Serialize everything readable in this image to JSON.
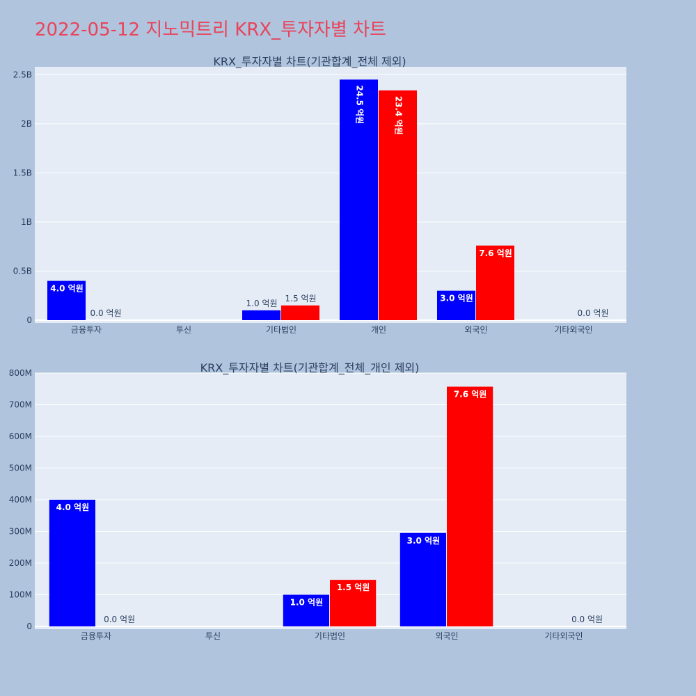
{
  "page_title": "2022-05-12 지노믹트리 KRX_투자자별 차트",
  "colors": {
    "series_a": "#0000ff",
    "series_b": "#ff0000",
    "plot_bg": "#e5ecf6",
    "page_bg": "#b0c4de",
    "title": "#e8445a"
  },
  "chart_data": [
    {
      "type": "bar",
      "title": "KRX_투자자별 차트(기관합계_전체 제외)",
      "categories": [
        "금융투자",
        "투신",
        "기타법인",
        "개인",
        "외국인",
        "기타외국인"
      ],
      "series": [
        {
          "color": "#0000ff",
          "values": [
            400000000,
            null,
            100000000,
            2450000000,
            300000000,
            null
          ],
          "labels": [
            "4.0 억원",
            "",
            "1.0 억원",
            "24.5 억원",
            "3.0 억원",
            ""
          ]
        },
        {
          "color": "#ff0000",
          "values": [
            0,
            null,
            150000000,
            2340000000,
            760000000,
            0
          ],
          "labels": [
            "0.0 억원",
            "",
            "1.5 억원",
            "23.4 억원",
            "7.6 억원",
            "0.0 억원"
          ]
        }
      ],
      "ylim": [
        0,
        2580000000
      ],
      "yticks": [
        0,
        500000000,
        1000000000,
        1500000000,
        2000000000,
        2500000000
      ],
      "ytick_labels": [
        "0",
        "0.5B",
        "1B",
        "1.5B",
        "2B",
        "2.5B"
      ],
      "grid": true
    },
    {
      "type": "bar",
      "title": "KRX_투자자별 차트(기관합계_전체_개인 제외)",
      "categories": [
        "금융투자",
        "투신",
        "기타법인",
        "외국인",
        "기타외국인"
      ],
      "series": [
        {
          "color": "#0000ff",
          "values": [
            400000000,
            null,
            100000000,
            295000000,
            null
          ],
          "labels": [
            "4.0 억원",
            "",
            "1.0 억원",
            "3.0 억원",
            ""
          ]
        },
        {
          "color": "#ff0000",
          "values": [
            0,
            null,
            147000000,
            757000000,
            0
          ],
          "labels": [
            "0.0 억원",
            "",
            "1.5 억원",
            "7.6 억원",
            "0.0 억원"
          ]
        }
      ],
      "ylim": [
        0,
        800000000
      ],
      "yticks": [
        0,
        100000000,
        200000000,
        300000000,
        400000000,
        500000000,
        600000000,
        700000000,
        800000000
      ],
      "ytick_labels": [
        "0",
        "100M",
        "200M",
        "300M",
        "400M",
        "500M",
        "600M",
        "700M",
        "800M"
      ],
      "grid": true
    }
  ]
}
